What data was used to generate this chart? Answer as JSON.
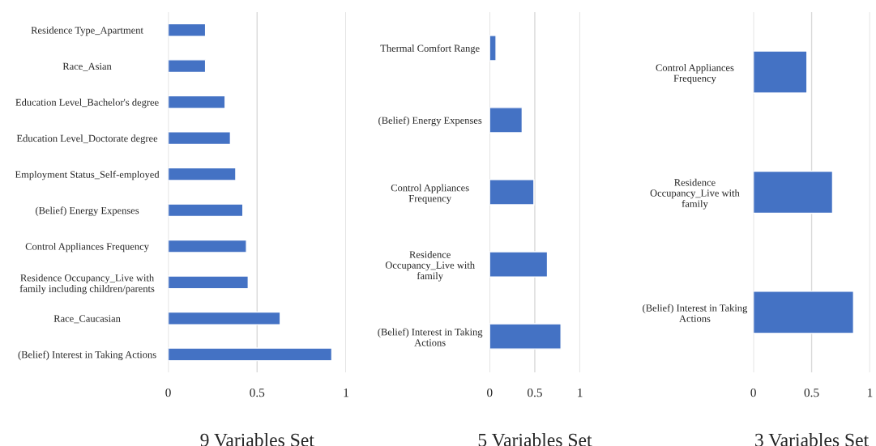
{
  "chart_data": [
    {
      "type": "bar",
      "orientation": "horizontal",
      "xlabel": "9 Variables Set",
      "categories": [
        "Residence Type_Apartment",
        "Race_Asian",
        "Education Level_Bachelor's degree",
        "Education Level_Doctorate degree",
        "Employment Status_Self-employed",
        "(Belief) Energy Expenses",
        "Control Appliances Frequency",
        "Residence Occupancy_Live with\nfamily including children/parents",
        "Race_Caucasian",
        "(Belief) Interest in Taking Actions"
      ],
      "values": [
        0.21,
        0.21,
        0.32,
        0.35,
        0.38,
        0.42,
        0.44,
        0.45,
        0.63,
        0.92
      ],
      "color": "#4472c4",
      "xlim": [
        0,
        1
      ],
      "xticks": [
        0,
        0.5,
        1
      ],
      "grid": "x"
    },
    {
      "type": "bar",
      "orientation": "horizontal",
      "xlabel": "5 Variables Set",
      "categories": [
        "Thermal Comfort Range",
        "(Belief) Energy Expenses",
        "Control Appliances\nFrequency",
        "Residence\nOccupancy_Live with\nfamily",
        "(Belief) Interest in Taking\nActions"
      ],
      "values": [
        0.07,
        0.36,
        0.49,
        0.64,
        0.79
      ],
      "color": "#4472c4",
      "xlim": [
        0,
        1
      ],
      "xticks": [
        0,
        0.5,
        1
      ],
      "grid": "x"
    },
    {
      "type": "bar",
      "orientation": "horizontal",
      "xlabel": "3 Variables Set",
      "categories": [
        "Control Appliances\nFrequency",
        "Residence\nOccupancy_Live with\nfamily",
        "(Belief) Interest in Taking\nActions"
      ],
      "values": [
        0.46,
        0.68,
        0.86
      ],
      "color": "#4472c4",
      "xlim": [
        0,
        1
      ],
      "xticks": [
        0,
        0.5,
        1
      ],
      "grid": "x"
    }
  ]
}
